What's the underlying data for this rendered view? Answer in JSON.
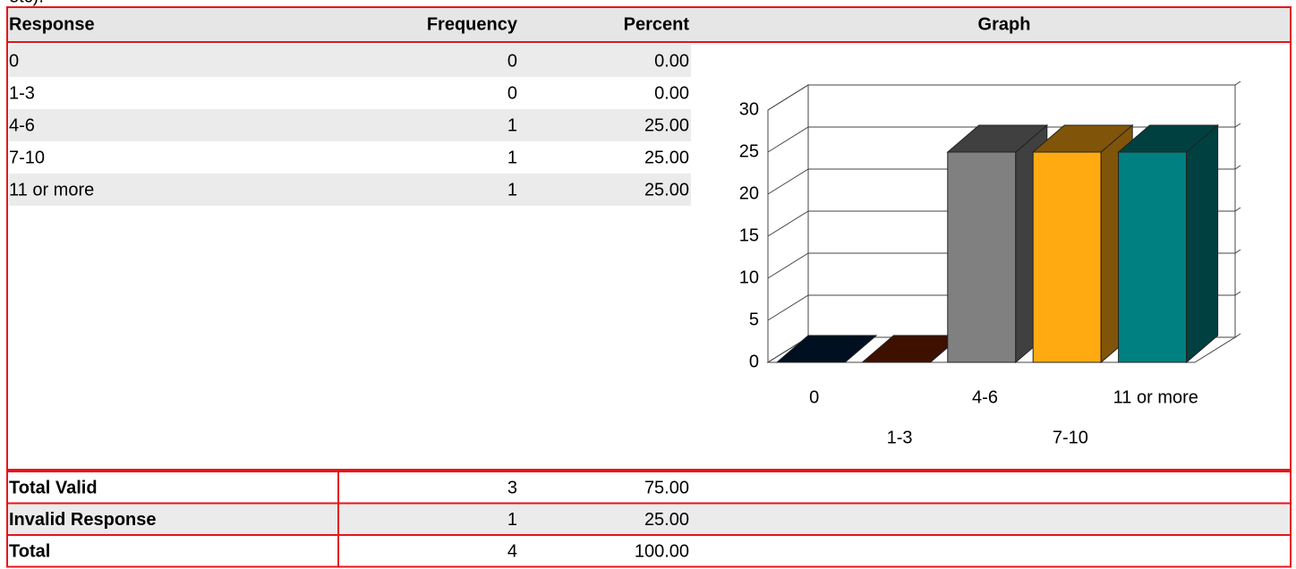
{
  "caption": "etc).",
  "table": {
    "headers": [
      "Response",
      "Frequency",
      "Percent",
      "Graph"
    ],
    "rows": [
      [
        "0",
        "0",
        "0.00"
      ],
      [
        "1-3",
        "0",
        "0.00"
      ],
      [
        "4-6",
        "1",
        "25.00"
      ],
      [
        "7-10",
        "1",
        "25.00"
      ],
      [
        "11 or more",
        "1",
        "25.00"
      ]
    ],
    "totals": [
      [
        "Total Valid",
        "3",
        "75.00"
      ],
      [
        "Invalid Response",
        "1",
        "25.00"
      ],
      [
        "Total",
        "4",
        "100.00"
      ]
    ]
  },
  "chart_data": {
    "type": "bar",
    "categories": [
      "0",
      "1-3",
      "4-6",
      "7-10",
      "11 or more"
    ],
    "values": [
      0,
      0,
      25,
      25,
      25
    ],
    "colors": [
      "#002040",
      "#7b2000",
      "#808080",
      "#ffaa11",
      "#008080"
    ],
    "ylim": [
      0,
      30
    ],
    "yticks": [
      0,
      5,
      10,
      15,
      20,
      25,
      30
    ],
    "grid": true
  }
}
